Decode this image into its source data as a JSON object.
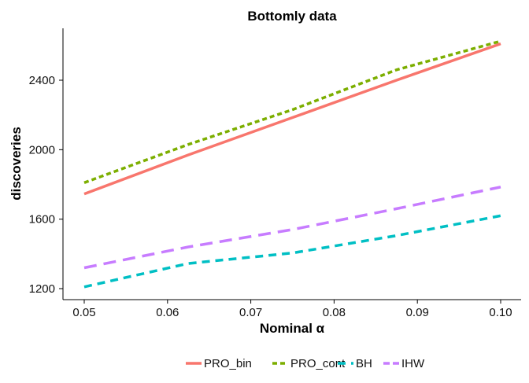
{
  "chart_data": {
    "type": "line",
    "title": "Bottomly data",
    "xlabel": "Nominal α",
    "ylabel": "discoveries",
    "xlim": [
      0.05,
      0.1
    ],
    "ylim": [
      1200,
      2640
    ],
    "x_ticks": [
      0.05,
      0.06,
      0.07,
      0.08,
      0.09,
      0.1
    ],
    "x_tick_labels": [
      "0.05",
      "0.06",
      "0.07",
      "0.08",
      "0.09",
      "0.10"
    ],
    "y_ticks": [
      1200,
      1600,
      2000,
      2400
    ],
    "y_tick_labels": [
      "1200",
      "1600",
      "2000",
      "2400"
    ],
    "grid": false,
    "legend_position": "bottom",
    "x": [
      0.05,
      0.0625,
      0.075,
      0.0875,
      0.1
    ],
    "series": [
      {
        "name": "PRO_bin",
        "color": "#F8766D",
        "style": "solid",
        "values": [
          1745,
          1970,
          2185,
          2400,
          2610
        ]
      },
      {
        "name": "PRO_cont",
        "color": "#7CAE00",
        "style": "dotted",
        "values": [
          1810,
          2030,
          2230,
          2460,
          2625
        ]
      },
      {
        "name": "BH",
        "color": "#00BFC4",
        "style": "dashed",
        "values": [
          1210,
          1345,
          1405,
          1505,
          1620
        ]
      },
      {
        "name": "IHW",
        "color": "#C77CFF",
        "style": "longdash",
        "values": [
          1320,
          1440,
          1540,
          1660,
          1785
        ]
      }
    ]
  }
}
